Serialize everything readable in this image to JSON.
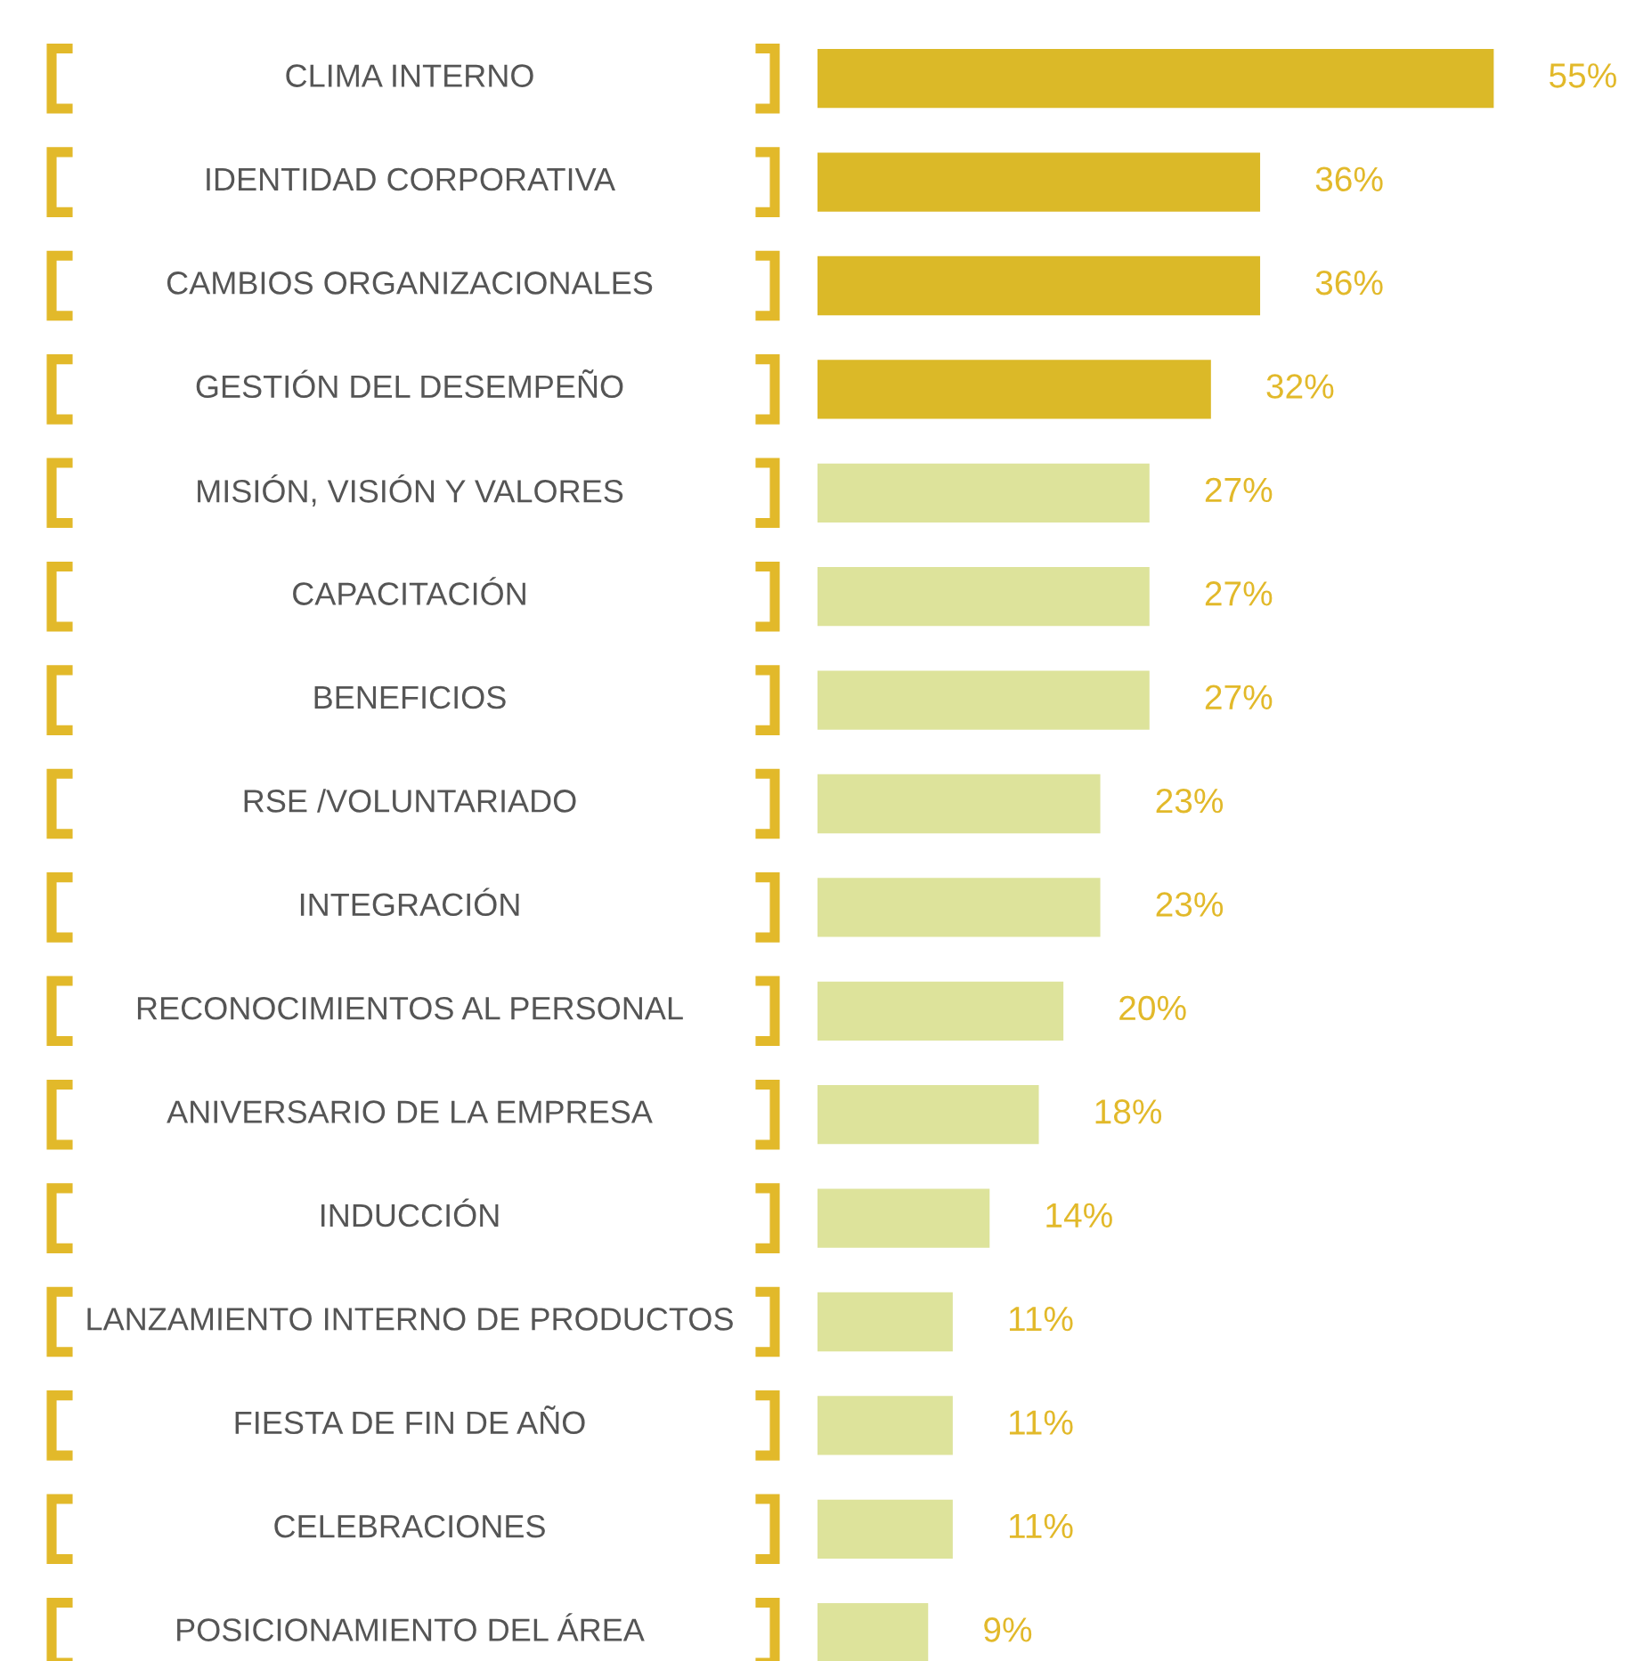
{
  "chart_data": {
    "type": "bar",
    "orientation": "horizontal",
    "categories": [
      "CLIMA INTERNO",
      "IDENTIDAD CORPORATIVA",
      "CAMBIOS ORGANIZACIONALES",
      "GESTIÓN DEL DESEMPEÑO",
      "MISIÓN, VISIÓN Y VALORES",
      "CAPACITACIÓN",
      "BENEFICIOS",
      "RSE /VOLUNTARIADO",
      "INTEGRACIÓN",
      "RECONOCIMIENTOS AL PERSONAL",
      "ANIVERSARIO DE LA EMPRESA",
      "INDUCCIÓN",
      "LANZAMIENTO INTERNO DE PRODUCTOS",
      "FIESTA DE FIN DE AÑO",
      "CELEBRACIONES",
      "POSICIONAMIENTO DEL ÁREA"
    ],
    "values": [
      55,
      36,
      36,
      32,
      27,
      27,
      27,
      23,
      23,
      20,
      18,
      14,
      11,
      11,
      11,
      9
    ],
    "colors": [
      "#dbb928",
      "#dbb928",
      "#dbb928",
      "#dbb928",
      "#dde39b",
      "#dde39b",
      "#dde39b",
      "#dde39b",
      "#dde39b",
      "#dde39b",
      "#dde39b",
      "#dde39b",
      "#dde39b",
      "#dde39b",
      "#dde39b",
      "#dde39b"
    ],
    "value_labels": [
      "55%",
      "36%",
      "36%",
      "32%",
      "27%",
      "27%",
      "27%",
      "23%",
      "23%",
      "20%",
      "18%",
      "14%",
      "11%",
      "11%",
      "11%",
      "9%"
    ]
  }
}
